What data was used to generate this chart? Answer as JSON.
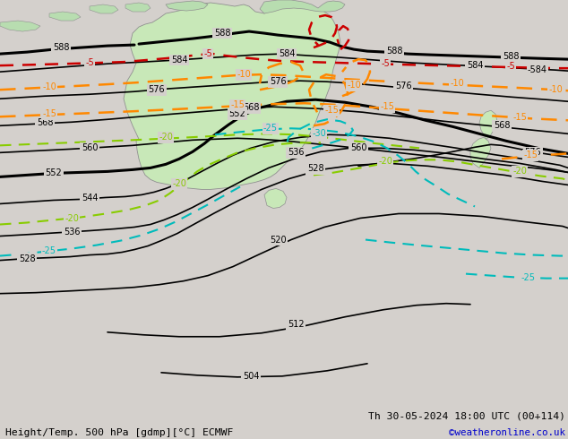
{
  "title_left": "Height/Temp. 500 hPa [gdmp][°C] ECMWF",
  "title_right": "Th 30-05-2024 18:00 UTC (00+114)",
  "credit": "©weatheronline.co.uk",
  "bg_color": "#d4d0cc",
  "land_color": "#b8ddb0",
  "aus_color": "#c8e8b8",
  "sea_color": "#d4d0cc",
  "fig_width": 6.34,
  "fig_height": 4.9,
  "dpi": 100,
  "credit_color": "#0000cc",
  "bottom_bar_color": "#c8c4c0"
}
